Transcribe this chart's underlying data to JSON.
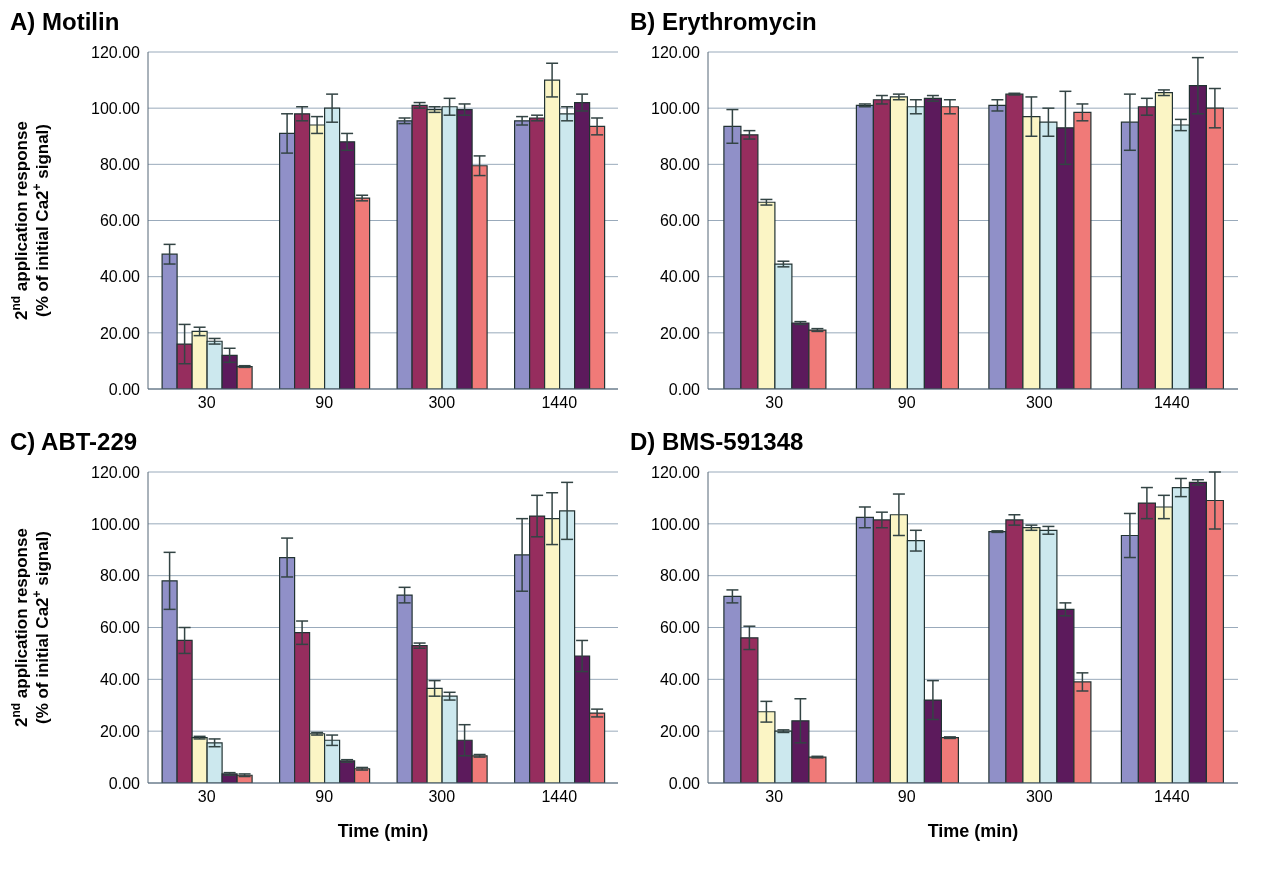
{
  "chart_data": [
    {
      "type": "bar",
      "title": "A) Motilin",
      "ylabel": "2$^{nd}$ application response\n(% of initial Ca2$^{+}$ signal)",
      "categories": [
        "30",
        "90",
        "300",
        "1440"
      ],
      "ylim": [
        0,
        120
      ],
      "yticks": [
        {
          "value": 0,
          "label": "0.00"
        },
        {
          "value": 20,
          "label": "20.00"
        },
        {
          "value": 40,
          "label": "40.00"
        },
        {
          "value": 60,
          "label": "60.00"
        },
        {
          "value": 80,
          "label": "80.00"
        },
        {
          "value": 100,
          "label": "100.00"
        },
        {
          "value": 120,
          "label": "120.00"
        }
      ],
      "grid": "y",
      "legend": false,
      "series": [
        {
          "color": "#9090c8",
          "values": [
            48,
            91,
            95.5,
            95.5
          ],
          "errors": [
            3.5,
            7,
            1,
            1.5
          ]
        },
        {
          "color": "#962d5e",
          "values": [
            16,
            98,
            101,
            96.5
          ],
          "errors": [
            7,
            2.5,
            1,
            1
          ]
        },
        {
          "color": "#fbf5c5",
          "values": [
            20.5,
            94,
            99.5,
            110
          ],
          "errors": [
            1.5,
            3,
            1,
            6
          ]
        },
        {
          "color": "#cce8ee",
          "values": [
            17,
            100,
            100.5,
            98
          ],
          "errors": [
            1,
            5,
            3,
            2.5
          ]
        },
        {
          "color": "#5c1a5c",
          "values": [
            12,
            88,
            99.5,
            102
          ],
          "errors": [
            2.5,
            3,
            2,
            3
          ]
        },
        {
          "color": "#f07a78",
          "values": [
            8,
            68,
            79.5,
            93.5
          ],
          "errors": [
            0.3,
            1,
            3.5,
            3
          ]
        }
      ]
    },
    {
      "type": "bar",
      "title": "B) Erythromycin",
      "categories": [
        "30",
        "90",
        "300",
        "1440"
      ],
      "ylim": [
        0,
        120
      ],
      "yticks": [
        {
          "value": 0,
          "label": "0.00"
        },
        {
          "value": 20,
          "label": "20.00"
        },
        {
          "value": 40,
          "label": "40.00"
        },
        {
          "value": 60,
          "label": "60.00"
        },
        {
          "value": 80,
          "label": "80.00"
        },
        {
          "value": 100,
          "label": "100.00"
        },
        {
          "value": 120,
          "label": "120.00"
        }
      ],
      "grid": "y",
      "legend": false,
      "series": [
        {
          "color": "#9090c8",
          "values": [
            93.5,
            101,
            101,
            95
          ],
          "errors": [
            6,
            0.5,
            2,
            10
          ]
        },
        {
          "color": "#962d5e",
          "values": [
            90.5,
            103,
            105,
            100.5
          ],
          "errors": [
            1.5,
            1.5,
            0.3,
            3
          ]
        },
        {
          "color": "#fbf5c5",
          "values": [
            66.5,
            104,
            97,
            105.5
          ],
          "errors": [
            1,
            1,
            7,
            1
          ]
        },
        {
          "color": "#cce8ee",
          "values": [
            44.5,
            100.5,
            95,
            94
          ],
          "errors": [
            1,
            2.5,
            5,
            2
          ]
        },
        {
          "color": "#5c1a5c",
          "values": [
            23.5,
            103.5,
            93,
            108
          ],
          "errors": [
            0.5,
            1,
            13,
            10
          ]
        },
        {
          "color": "#f07a78",
          "values": [
            21,
            100.5,
            98.5,
            100
          ],
          "errors": [
            0.5,
            2.5,
            3,
            7
          ]
        }
      ]
    },
    {
      "type": "bar",
      "title": "C) ABT-229",
      "ylabel": "2$^{nd}$ application response\n(% of initial Ca2$^{+}$ signal)",
      "xlabel": "Time (min)",
      "categories": [
        "30",
        "90",
        "300",
        "1440"
      ],
      "ylim": [
        0,
        120
      ],
      "yticks": [
        {
          "value": 0,
          "label": "0.00"
        },
        {
          "value": 20,
          "label": "20.00"
        },
        {
          "value": 40,
          "label": "40.00"
        },
        {
          "value": 60,
          "label": "60.00"
        },
        {
          "value": 80,
          "label": "80.00"
        },
        {
          "value": 100,
          "label": "100.00"
        },
        {
          "value": 120,
          "label": "120.00"
        }
      ],
      "grid": "y",
      "legend": false,
      "series": [
        {
          "color": "#9090c8",
          "values": [
            78,
            87,
            72.5,
            88
          ],
          "errors": [
            11,
            7.5,
            3,
            14
          ]
        },
        {
          "color": "#962d5e",
          "values": [
            55,
            58,
            53,
            103
          ],
          "errors": [
            5,
            4.5,
            1,
            8
          ]
        },
        {
          "color": "#fbf5c5",
          "values": [
            17.5,
            19,
            36.5,
            102
          ],
          "errors": [
            0.5,
            0.5,
            3,
            10
          ]
        },
        {
          "color": "#cce8ee",
          "values": [
            15.5,
            16.5,
            33.5,
            105
          ],
          "errors": [
            1.5,
            2,
            1.5,
            11
          ]
        },
        {
          "color": "#5c1a5c",
          "values": [
            3.5,
            8.5,
            16.5,
            49
          ],
          "errors": [
            0.5,
            0.5,
            6,
            6
          ]
        },
        {
          "color": "#f07a78",
          "values": [
            3,
            5.5,
            10.5,
            27
          ],
          "errors": [
            0.5,
            0.5,
            0.5,
            1.5
          ]
        }
      ]
    },
    {
      "type": "bar",
      "title": "D) BMS-591348",
      "xlabel": "Time (min)",
      "categories": [
        "30",
        "90",
        "300",
        "1440"
      ],
      "ylim": [
        0,
        120
      ],
      "yticks": [
        {
          "value": 0,
          "label": "0.00"
        },
        {
          "value": 20,
          "label": "20.00"
        },
        {
          "value": 40,
          "label": "40.00"
        },
        {
          "value": 60,
          "label": "60.00"
        },
        {
          "value": 80,
          "label": "80.00"
        },
        {
          "value": 100,
          "label": "100.00"
        },
        {
          "value": 120,
          "label": "120.00"
        }
      ],
      "grid": "y",
      "legend": false,
      "series": [
        {
          "color": "#9090c8",
          "values": [
            72,
            102.5,
            97,
            95.5
          ],
          "errors": [
            2.5,
            4,
            0.3,
            8.5
          ]
        },
        {
          "color": "#962d5e",
          "values": [
            56,
            101.5,
            101.5,
            108
          ],
          "errors": [
            4.5,
            3,
            2,
            6
          ]
        },
        {
          "color": "#fbf5c5",
          "values": [
            27.5,
            103.5,
            98.5,
            106.5
          ],
          "errors": [
            4,
            8,
            1,
            4.5
          ]
        },
        {
          "color": "#cce8ee",
          "values": [
            20,
            93.5,
            97.5,
            114
          ],
          "errors": [
            0.5,
            4,
            1.5,
            3.5
          ]
        },
        {
          "color": "#5c1a5c",
          "values": [
            24,
            32,
            67,
            116
          ],
          "errors": [
            8.5,
            7.5,
            2.5,
            1
          ]
        },
        {
          "color": "#f07a78",
          "values": [
            10,
            17.5,
            39,
            109
          ],
          "errors": [
            0.3,
            0.3,
            3.5,
            11
          ]
        }
      ]
    }
  ]
}
